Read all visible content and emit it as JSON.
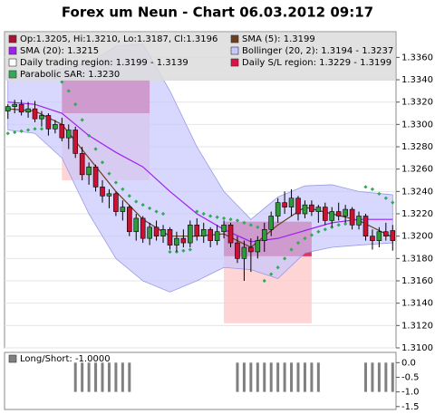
{
  "chart_data": [
    {
      "type": "candlestick",
      "title": "Forex um Neun - Chart 06.03.2012 09:17",
      "candle_name": "Op:1.3205, Hi:1.3210, Lo:1.3187, Cl:1.3196",
      "candle_color": "#aa1133",
      "up_color": "#2e9a3a",
      "down_color": "#cc1133",
      "open": [
        1.3312,
        1.3316,
        1.3318,
        1.3311,
        1.3314,
        1.3305,
        1.3308,
        1.3296,
        1.33,
        1.3288,
        1.3295,
        1.3274,
        1.3255,
        1.3262,
        1.3244,
        1.3236,
        1.3238,
        1.3222,
        1.3226,
        1.3204,
        1.3216,
        1.3198,
        1.3208,
        1.32,
        1.3206,
        1.3192,
        1.3198,
        1.3194,
        1.321,
        1.32,
        1.3206,
        1.3196,
        1.3204,
        1.321,
        1.3194,
        1.318,
        1.319,
        1.3186,
        1.3196,
        1.3206,
        1.3218,
        1.323,
        1.3226,
        1.3234,
        1.322,
        1.3228,
        1.3222,
        1.3226,
        1.3214,
        1.3222,
        1.3218,
        1.3224,
        1.321,
        1.3218,
        1.32,
        1.3196,
        1.3204,
        1.3205
      ],
      "high": [
        1.3318,
        1.3322,
        1.3322,
        1.332,
        1.3321,
        1.3312,
        1.331,
        1.3304,
        1.3306,
        1.33,
        1.3298,
        1.328,
        1.3266,
        1.3264,
        1.325,
        1.3242,
        1.324,
        1.3232,
        1.3228,
        1.322,
        1.3218,
        1.3212,
        1.3214,
        1.321,
        1.3208,
        1.3204,
        1.3206,
        1.3214,
        1.3216,
        1.3212,
        1.3208,
        1.321,
        1.3214,
        1.3212,
        1.32,
        1.3196,
        1.3198,
        1.32,
        1.3212,
        1.3222,
        1.3234,
        1.324,
        1.3242,
        1.3236,
        1.3232,
        1.3232,
        1.3228,
        1.323,
        1.3226,
        1.323,
        1.3228,
        1.3226,
        1.3222,
        1.322,
        1.3206,
        1.3208,
        1.3212,
        1.321
      ],
      "low": [
        1.3305,
        1.331,
        1.3308,
        1.3306,
        1.3302,
        1.3298,
        1.329,
        1.3292,
        1.3285,
        1.3278,
        1.327,
        1.325,
        1.3246,
        1.324,
        1.323,
        1.3225,
        1.3218,
        1.3214,
        1.32,
        1.3196,
        1.3194,
        1.3192,
        1.3196,
        1.3194,
        1.3188,
        1.3186,
        1.319,
        1.319,
        1.3196,
        1.3194,
        1.319,
        1.3192,
        1.3198,
        1.319,
        1.3176,
        1.316,
        1.3168,
        1.318,
        1.3186,
        1.32,
        1.3212,
        1.322,
        1.3218,
        1.3214,
        1.3216,
        1.3218,
        1.3212,
        1.321,
        1.3208,
        1.3214,
        1.3212,
        1.3206,
        1.3206,
        1.3196,
        1.3188,
        1.319,
        1.3196,
        1.3187
      ],
      "close": [
        1.3316,
        1.3318,
        1.3311,
        1.3314,
        1.3305,
        1.3308,
        1.3296,
        1.33,
        1.3288,
        1.3295,
        1.3274,
        1.3255,
        1.3262,
        1.3244,
        1.3236,
        1.3238,
        1.3222,
        1.3226,
        1.3204,
        1.3216,
        1.3198,
        1.3208,
        1.32,
        1.3206,
        1.3192,
        1.3198,
        1.3194,
        1.321,
        1.32,
        1.3206,
        1.3196,
        1.3204,
        1.321,
        1.3194,
        1.318,
        1.319,
        1.3186,
        1.3196,
        1.3206,
        1.3218,
        1.323,
        1.3226,
        1.3234,
        1.322,
        1.3228,
        1.3222,
        1.3226,
        1.3214,
        1.3222,
        1.3218,
        1.3224,
        1.321,
        1.3218,
        1.32,
        1.3196,
        1.3204,
        1.32,
        1.3196
      ],
      "band": {
        "name": "Bollinger (20, 2): 1.3194 - 1.3237",
        "color": "#c8c8ff",
        "x": [
          0,
          4,
          8,
          12,
          16,
          20,
          24,
          28,
          32,
          36,
          40,
          44,
          48,
          52,
          57
        ],
        "upper": [
          1.3345,
          1.3345,
          1.335,
          1.3355,
          1.337,
          1.3372,
          1.333,
          1.328,
          1.324,
          1.3215,
          1.3235,
          1.3245,
          1.3246,
          1.324,
          1.3237
        ],
        "lower": [
          1.3295,
          1.3292,
          1.327,
          1.322,
          1.318,
          1.316,
          1.315,
          1.316,
          1.3172,
          1.317,
          1.3162,
          1.3185,
          1.319,
          1.3192,
          1.3194
        ]
      },
      "regions": [
        {
          "name": "Daily trading region: 1.3199 - 1.3139",
          "color": "#ffcccc",
          "boxes": [
            {
              "x": [
                8,
                21
              ],
              "y": [
                1.325,
                1.331
              ]
            },
            {
              "x": [
                32,
                45
              ],
              "y": [
                1.3122,
                1.3182
              ]
            }
          ]
        },
        {
          "name": "Daily S/L region: 1.3229 - 1.3199",
          "color": "#dd1144",
          "boxes": [
            {
              "x": [
                8,
                21
              ],
              "y": [
                1.331,
                1.334
              ]
            },
            {
              "x": [
                32,
                45
              ],
              "y": [
                1.3182,
                1.3213
              ]
            }
          ]
        }
      ],
      "lines": [
        {
          "name": "SMA (5): 1.3199",
          "color": "#6b3f22",
          "x": [
            0,
            4,
            8,
            12,
            16,
            20,
            24,
            28,
            32,
            36,
            40,
            44,
            48,
            52,
            57
          ],
          "values": [
            1.3314,
            1.3312,
            1.33,
            1.327,
            1.324,
            1.3215,
            1.32,
            1.32,
            1.3202,
            1.319,
            1.321,
            1.3226,
            1.322,
            1.3214,
            1.3199
          ]
        },
        {
          "name": "SMA (20): 1.3215",
          "color": "#a020f0",
          "x": [
            0,
            4,
            8,
            12,
            16,
            20,
            24,
            28,
            32,
            36,
            40,
            44,
            48,
            52,
            57
          ],
          "values": [
            1.332,
            1.3318,
            1.331,
            1.329,
            1.3275,
            1.3262,
            1.324,
            1.322,
            1.3206,
            1.3195,
            1.3198,
            1.3205,
            1.3212,
            1.3215,
            1.3215
          ]
        }
      ],
      "sar": {
        "name": "Parabolic SAR: 1.3230",
        "color": "#33aa55",
        "values": [
          1.3292,
          1.3293,
          1.3294,
          1.3295,
          1.3296,
          1.3296,
          1.3297,
          1.3342,
          1.3338,
          1.333,
          1.3318,
          1.3304,
          1.329,
          1.3278,
          1.3266,
          1.3256,
          1.3248,
          1.3242,
          1.3236,
          1.3231,
          1.3228,
          1.3225,
          1.3222,
          1.322,
          1.3186,
          1.3186,
          1.3187,
          1.3188,
          1.3222,
          1.322,
          1.3218,
          1.3217,
          1.3216,
          1.3215,
          1.3214,
          1.3212,
          1.321,
          1.3208,
          1.316,
          1.3166,
          1.3172,
          1.318,
          1.3188,
          1.3194,
          1.3198,
          1.3201,
          1.3204,
          1.3206,
          1.3208,
          1.321,
          1.3211,
          1.3212,
          1.3213,
          1.3244,
          1.3242,
          1.3238,
          1.3234,
          1.323
        ]
      },
      "ylim": [
        1.31,
        1.3383
      ],
      "yticks": [
        {
          "value": 1.31,
          "label": "1.3100"
        },
        {
          "value": 1.312,
          "label": "1.3120"
        },
        {
          "value": 1.314,
          "label": "1.3140"
        },
        {
          "value": 1.316,
          "label": "1.3160"
        },
        {
          "value": 1.318,
          "label": "1.3180"
        },
        {
          "value": 1.32,
          "label": "1.3200"
        },
        {
          "value": 1.322,
          "label": "1.3220"
        },
        {
          "value": 1.324,
          "label": "1.3240"
        },
        {
          "value": 1.326,
          "label": "1.3260"
        },
        {
          "value": 1.328,
          "label": "1.3280"
        },
        {
          "value": 1.33,
          "label": "1.3300"
        },
        {
          "value": 1.332,
          "label": "1.3320"
        },
        {
          "value": 1.334,
          "label": "1.3340"
        },
        {
          "value": 1.336,
          "label": "1.3360"
        }
      ],
      "grid": true
    },
    {
      "type": "bar",
      "name": "Long/Short: -1.0000",
      "color": "#808080",
      "values": [
        0,
        0,
        0,
        0,
        0,
        0,
        0,
        0,
        0,
        0,
        -1,
        -1,
        -1,
        -1,
        -1,
        -1,
        -1,
        -1,
        -1,
        0,
        0,
        0,
        0,
        0,
        0,
        0,
        0,
        0,
        0,
        0,
        0,
        0,
        0,
        0,
        -1,
        -1,
        -1,
        -1,
        -1,
        -1,
        -1,
        -1,
        -1,
        -1,
        -1,
        -1,
        -1,
        0,
        0,
        0,
        0,
        0,
        0,
        -1,
        -1,
        -1,
        -1,
        -1
      ],
      "ylim": [
        -1.6,
        0.35
      ],
      "yticks": [
        {
          "value": 0,
          "label": "0.0"
        },
        -0.5,
        {
          "value": -1,
          "label": "-1.0"
        },
        -1.5
      ]
    }
  ]
}
